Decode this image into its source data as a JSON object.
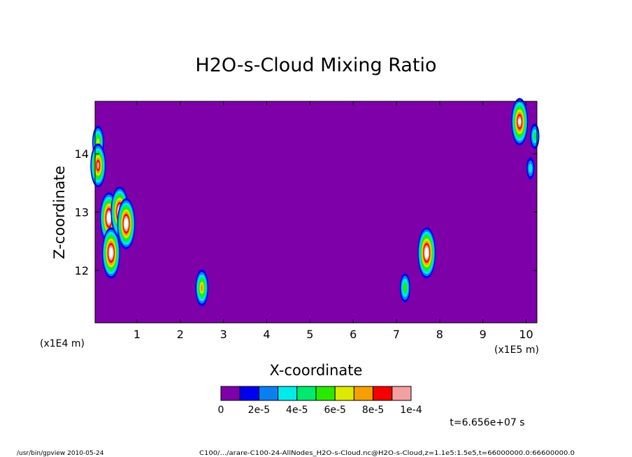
{
  "chart_data": {
    "type": "heatmap",
    "title": "H2O-s-Cloud Mixing Ratio",
    "xlabel": "X-coordinate",
    "ylabel": "Z-coordinate",
    "x_scale_label": "(x1E5 m)",
    "y_scale_label": "(x1E4 m)",
    "x_ticks": [
      "1",
      "2",
      "3",
      "4",
      "5",
      "6",
      "7",
      "8",
      "9",
      "10"
    ],
    "y_ticks": [
      "12",
      "13",
      "14"
    ],
    "xlim": [
      0.03,
      10.25
    ],
    "ylim": [
      11.1,
      14.9
    ],
    "background_value": 0,
    "colorbar": {
      "labels": [
        "0",
        "2e-5",
        "4e-5",
        "6e-5",
        "8e-5",
        "1e-4"
      ],
      "colors": [
        "#7d00a8",
        "#0000f0",
        "#0a80f0",
        "#00eaea",
        "#00ea6e",
        "#28ea00",
        "#dcea00",
        "#f5a000",
        "#f50000",
        "#f5a0a0"
      ]
    },
    "cloud_features": [
      {
        "x": 0.1,
        "z": 14.2,
        "value": 6e-05
      },
      {
        "x": 0.1,
        "z": 13.8,
        "value": 9e-05
      },
      {
        "x": 0.35,
        "z": 12.9,
        "value": 0.00012
      },
      {
        "x": 0.4,
        "z": 12.3,
        "value": 0.00012
      },
      {
        "x": 0.6,
        "z": 13.0,
        "value": 0.00012
      },
      {
        "x": 0.75,
        "z": 12.8,
        "value": 0.00011
      },
      {
        "x": 2.5,
        "z": 11.7,
        "value": 7e-05
      },
      {
        "x": 7.2,
        "z": 11.7,
        "value": 5e-05
      },
      {
        "x": 7.7,
        "z": 12.3,
        "value": 0.00012
      },
      {
        "x": 9.85,
        "z": 14.55,
        "value": 9.5e-05
      },
      {
        "x": 10.2,
        "z": 14.3,
        "value": 4e-05
      },
      {
        "x": 10.1,
        "z": 13.75,
        "value": 3e-05
      }
    ]
  },
  "time_label": "t=6.656e+07 s",
  "footer": {
    "program": "/usr/bin/gpview  2010-05-24",
    "source": "C100/.../arare-C100-24-AllNodes_H2O-s-Cloud.nc@H2O-s-Cloud,z=1.1e5:1.5e5,t=66000000.0:66600000.0"
  }
}
